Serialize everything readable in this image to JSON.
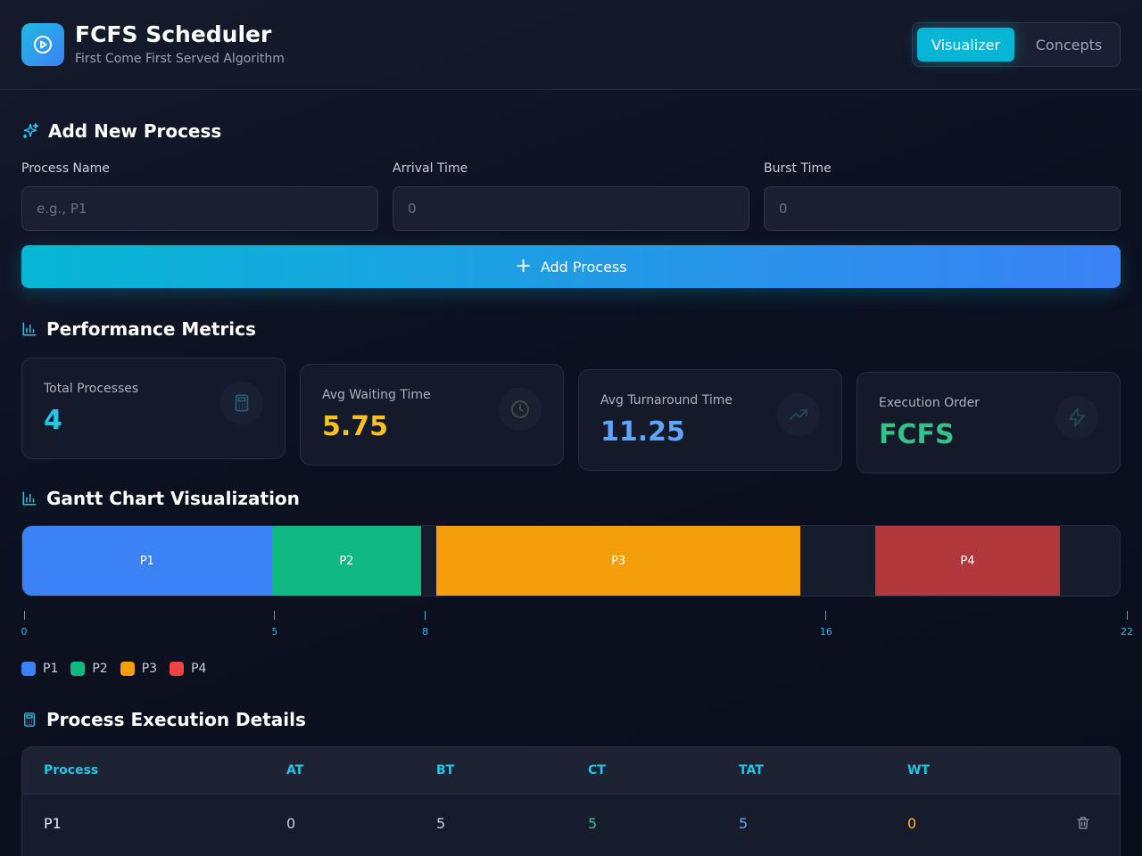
{
  "header": {
    "title": "FCFS Scheduler",
    "subtitle": "First Come First Served Algorithm",
    "logo_icon": "play-circle-icon",
    "tabs": [
      {
        "label": "Visualizer",
        "active": true
      },
      {
        "label": "Concepts",
        "active": false
      }
    ]
  },
  "add_process": {
    "title": "Add New Process",
    "icon": "sparkles-icon",
    "fields": [
      {
        "label": "Process Name",
        "placeholder": "e.g., P1",
        "value": ""
      },
      {
        "label": "Arrival Time",
        "placeholder": "0",
        "value": ""
      },
      {
        "label": "Burst Time",
        "placeholder": "0",
        "value": ""
      }
    ],
    "button_label": "Add Process"
  },
  "metrics": {
    "title": "Performance Metrics",
    "cards": [
      {
        "label": "Total Processes",
        "value": "4",
        "color": "#22c5e6",
        "icon": "calculator-icon"
      },
      {
        "label": "Avg Waiting Time",
        "value": "5.75",
        "color": "#fbbf24",
        "icon": "clock-icon"
      },
      {
        "label": "Avg Turnaround Time",
        "value": "11.25",
        "color": "#60a5fa",
        "icon": "trending-up-icon"
      },
      {
        "label": "Execution Order",
        "value": "FCFS",
        "color": "#34c28a",
        "icon": "zap-icon"
      }
    ]
  },
  "gantt": {
    "title": "Gantt Chart Visualization",
    "total_time": 22,
    "blocks": [
      {
        "label": "P1",
        "start": 0,
        "end": 5,
        "color": "#3b82f6"
      },
      {
        "label": "P2",
        "start": 5,
        "end": 8,
        "color": "#10b981"
      },
      {
        "label": "P3",
        "start": 8.3,
        "end": 15.6,
        "color": "#f59e0b"
      },
      {
        "label": "P4",
        "start": 17.1,
        "end": 20.8,
        "color": "#b3383c"
      }
    ],
    "ticks": [
      "0",
      "5",
      "8",
      "16",
      "22"
    ],
    "legend": [
      {
        "label": "P1",
        "color": "#3b82f6"
      },
      {
        "label": "P2",
        "color": "#10b981"
      },
      {
        "label": "P3",
        "color": "#f59e0b"
      },
      {
        "label": "P4",
        "color": "#ef4444"
      }
    ]
  },
  "table": {
    "title": "Process Execution Details",
    "headers": [
      "Process",
      "AT",
      "BT",
      "CT",
      "TAT",
      "WT"
    ],
    "rows": [
      {
        "process": "P1",
        "at": "0",
        "bt": "5",
        "ct": "5",
        "tat": "5",
        "wt": "0"
      }
    ]
  }
}
